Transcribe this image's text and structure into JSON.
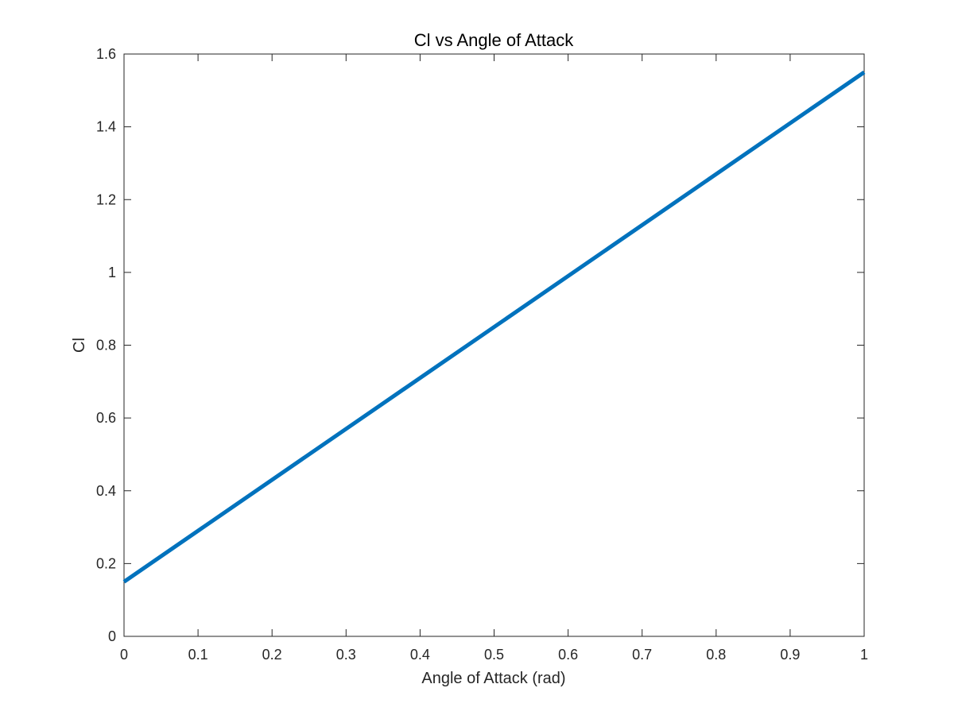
{
  "colors": {
    "series": "#0072BD",
    "axis": "#262626",
    "background": "#ffffff"
  },
  "chart_data": {
    "type": "line",
    "title": "Cl vs Angle of Attack",
    "xlabel": "Angle of Attack (rad)",
    "ylabel": "Cl",
    "xlim": [
      0,
      1
    ],
    "ylim": [
      0,
      1.6
    ],
    "xticks": [
      0,
      0.1,
      0.2,
      0.3,
      0.4,
      0.5,
      0.6,
      0.7,
      0.8,
      0.9,
      1
    ],
    "xtick_labels": [
      "0",
      "0.1",
      "0.2",
      "0.3",
      "0.4",
      "0.5",
      "0.6",
      "0.7",
      "0.8",
      "0.9",
      "1"
    ],
    "yticks": [
      0,
      0.2,
      0.4,
      0.6,
      0.8,
      1,
      1.2,
      1.4,
      1.6
    ],
    "ytick_labels": [
      "0",
      "0.2",
      "0.4",
      "0.6",
      "0.8",
      "1",
      "1.2",
      "1.4",
      "1.6"
    ],
    "grid": false,
    "series": [
      {
        "name": "Cl",
        "x": [
          0,
          1
        ],
        "y": [
          0.15,
          1.55
        ]
      }
    ]
  }
}
